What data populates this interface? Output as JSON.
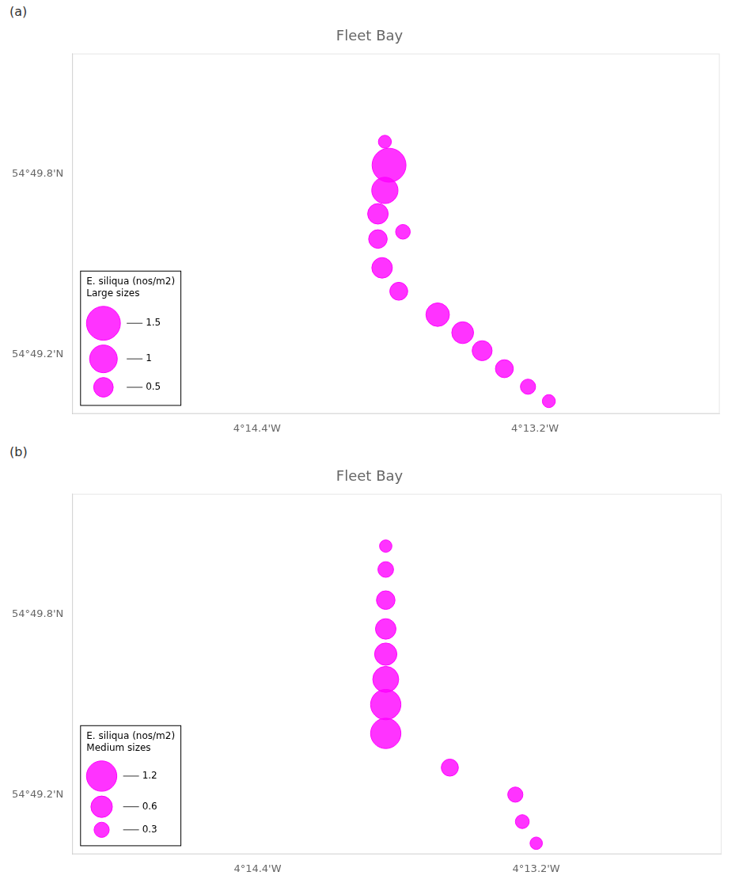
{
  "chart_data": [
    {
      "type": "bubble",
      "title": "Fleet Bay",
      "annotations": [
        "(a)"
      ],
      "series": [
        {
          "name": "E. siliqua (nos/m2)\nLarge sizes",
          "color": "#ff00ff",
          "x": [
            -4.2308,
            -4.2305,
            -4.2308,
            -4.2313,
            -4.2313,
            -4.2295,
            -4.231,
            -4.2298,
            -4.227,
            -4.2252,
            -4.2238,
            -4.2222,
            -4.2205,
            -4.219
          ],
          "y": [
            54.8318,
            54.8305,
            54.8291,
            54.8278,
            54.8264,
            54.8268,
            54.8248,
            54.8235,
            54.8222,
            54.8212,
            54.8202,
            54.8192,
            54.8182,
            54.8174
          ],
          "size": [
            0.22,
            1.5,
            0.9,
            0.55,
            0.45,
            0.28,
            0.55,
            0.42,
            0.72,
            0.62,
            0.52,
            0.42,
            0.3,
            0.22
          ]
        }
      ],
      "size_legend": [
        1.5,
        1,
        0.5
      ],
      "legend": "lower left",
      "xlim": [
        -4.2533,
        -4.2067
      ],
      "xticks": [
        {
          "value": -4.24,
          "label": "4°14.4'W"
        },
        {
          "value": -4.22,
          "label": "4°13.2'W"
        }
      ],
      "ylim": [
        54.8167,
        54.8367
      ],
      "yticks": [
        {
          "value": 54.82,
          "label": "54°49.2'N"
        },
        {
          "value": 54.83,
          "label": "54°49.8'N"
        }
      ],
      "grid": false
    },
    {
      "type": "bubble",
      "title": "Fleet Bay",
      "annotations": [
        "(b)"
      ],
      "series": [
        {
          "name": "E. siliqua (nos/m2)\nMedium sizes",
          "color": "#ff00ff",
          "x": [
            -4.2308,
            -4.2308,
            -4.2308,
            -4.2308,
            -4.2308,
            -4.2308,
            -4.2308,
            -4.2308,
            -4.2262,
            -4.2215,
            -4.221,
            -4.22
          ],
          "y": [
            54.8338,
            54.8325,
            54.8308,
            54.8292,
            54.8278,
            54.8264,
            54.825,
            54.8234,
            54.8215,
            54.82,
            54.8185,
            54.8173
          ],
          "size": [
            0.2,
            0.32,
            0.45,
            0.55,
            0.65,
            0.88,
            1.2,
            1.2,
            0.38,
            0.3,
            0.25,
            0.2
          ]
        }
      ],
      "size_legend": [
        1.2,
        0.6,
        0.3
      ],
      "legend": "lower left",
      "xlim": [
        -4.2533,
        -4.2067
      ],
      "xticks": [
        {
          "value": -4.24,
          "label": "4°14.4'W"
        },
        {
          "value": -4.22,
          "label": "4°13.2'W"
        }
      ],
      "ylim": [
        54.8167,
        54.8367
      ],
      "yticks": [
        {
          "value": 54.82,
          "label": "54°49.2'N"
        },
        {
          "value": 54.83,
          "label": "54°49.8'N"
        }
      ],
      "grid": false
    }
  ]
}
